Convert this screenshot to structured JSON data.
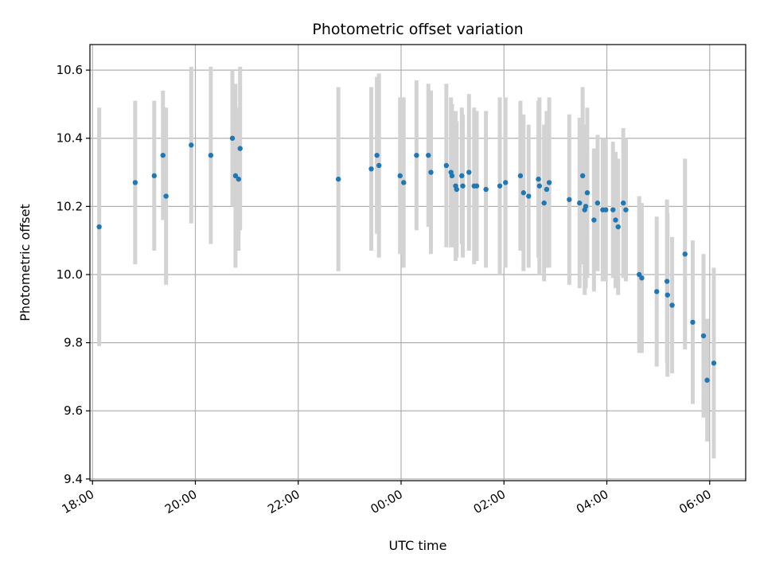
{
  "chart_data": {
    "type": "scatter",
    "title": "Photometric offset variation",
    "xlabel": "UTC time",
    "ylabel": "Photometric offset",
    "x_unit": "UTC hours (values past 24 belong to the next day)",
    "xlim": [
      17.95,
      30.7
    ],
    "ylim": [
      9.395,
      10.675
    ],
    "x_ticks": [
      18,
      20,
      22,
      24,
      26,
      28,
      30
    ],
    "x_tick_labels": [
      "18:00",
      "20:00",
      "22:00",
      "00:00",
      "02:00",
      "04:00",
      "06:00"
    ],
    "y_ticks": [
      9.4,
      9.6,
      9.8,
      10.0,
      10.2,
      10.4,
      10.6
    ],
    "y_tick_labels": [
      "9.4",
      "9.6",
      "9.8",
      "10.0",
      "10.2",
      "10.4",
      "10.6"
    ],
    "grid": true,
    "colors": {
      "points": "#1f77b4",
      "error_bars": "#d3d3d3",
      "grid": "#b0b0b0"
    },
    "series": [
      {
        "x": [
          18.13,
          18.83,
          19.2,
          19.37,
          19.43,
          19.92,
          20.3,
          20.72,
          20.78,
          20.84,
          20.87,
          22.78,
          23.42,
          23.53,
          23.57,
          23.98,
          24.05,
          24.3,
          24.53,
          24.58,
          24.88,
          24.97,
          24.99,
          25.06,
          25.08,
          25.18,
          25.2,
          25.32,
          25.42,
          25.47,
          25.65,
          25.92,
          26.03,
          26.32,
          26.38,
          26.48,
          26.67,
          26.69,
          26.78,
          26.83,
          26.88,
          27.27,
          27.47,
          27.53,
          27.57,
          27.59,
          27.62,
          27.75,
          27.82,
          27.92,
          27.98,
          28.12,
          28.17,
          28.22,
          28.32,
          28.37,
          28.63,
          28.68,
          28.97,
          29.17,
          29.18,
          29.27,
          29.52,
          29.67,
          29.88,
          29.95,
          30.08
        ],
        "y": [
          10.14,
          10.27,
          10.29,
          10.35,
          10.23,
          10.38,
          10.35,
          10.4,
          10.29,
          10.28,
          10.37,
          10.28,
          10.31,
          10.35,
          10.32,
          10.29,
          10.27,
          10.35,
          10.35,
          10.3,
          10.32,
          10.3,
          10.29,
          10.26,
          10.25,
          10.29,
          10.26,
          10.3,
          10.26,
          10.26,
          10.25,
          10.26,
          10.27,
          10.29,
          10.24,
          10.23,
          10.28,
          10.26,
          10.21,
          10.25,
          10.27,
          10.22,
          10.21,
          10.29,
          10.19,
          10.2,
          10.24,
          10.16,
          10.21,
          10.19,
          10.19,
          10.19,
          10.16,
          10.14,
          10.21,
          10.19,
          10.0,
          9.99,
          9.95,
          9.98,
          9.94,
          9.91,
          10.06,
          9.86,
          9.82,
          9.69,
          9.74
        ],
        "yerr": [
          0.35,
          0.24,
          0.22,
          0.19,
          0.26,
          0.23,
          0.26,
          0.2,
          0.27,
          0.21,
          0.24,
          0.27,
          0.24,
          0.23,
          0.27,
          0.23,
          0.25,
          0.22,
          0.21,
          0.24,
          0.24,
          0.22,
          0.21,
          0.22,
          0.2,
          0.2,
          0.21,
          0.23,
          0.23,
          0.22,
          0.23,
          0.26,
          0.25,
          0.22,
          0.23,
          0.21,
          0.23,
          0.26,
          0.23,
          0.23,
          0.25,
          0.25,
          0.25,
          0.26,
          0.25,
          0.24,
          0.25,
          0.21,
          0.2,
          0.21,
          0.21,
          0.2,
          0.2,
          0.2,
          0.22,
          0.21,
          0.23,
          0.22,
          0.22,
          0.24,
          0.24,
          0.2,
          0.28,
          0.24,
          0.24,
          0.18,
          0.28
        ]
      }
    ]
  }
}
